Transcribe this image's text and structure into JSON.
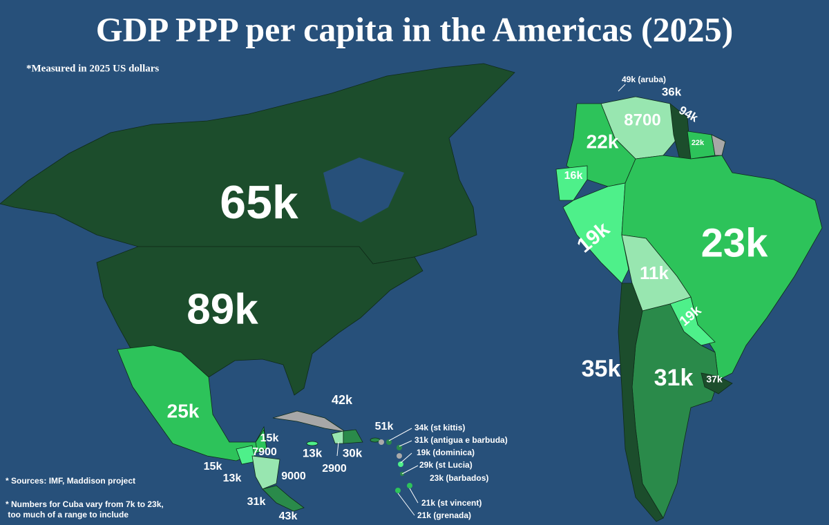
{
  "title": "GDP PPP per capita in the Americas (2025)",
  "subtitle": "*Measured in 2025 US dollars",
  "notes": [
    "* Sources: IMF, Maddison project",
    "* Numbers for Cuba vary from 7k to 23k,",
    " too much of a range to include"
  ],
  "labels": [
    "65k",
    "89k",
    "25k",
    "42k",
    "15k",
    "7900",
    "15k",
    "13k",
    "9000",
    "31k",
    "43k",
    "13k",
    "2900",
    "30k",
    "51k",
    "34k (st kittis)",
    "31k (antigua e barbuda)",
    "19k (dominica)",
    "29k (st Lucia)",
    "23k (barbados)",
    "21k (st vincent)",
    "21k (grenada)",
    "49k (aruba)",
    "36k",
    "94k",
    "8700",
    "22k",
    "22k",
    "16k",
    "19k",
    "23k",
    "11k",
    "19k",
    "35k",
    "31k",
    "37k"
  ]
}
